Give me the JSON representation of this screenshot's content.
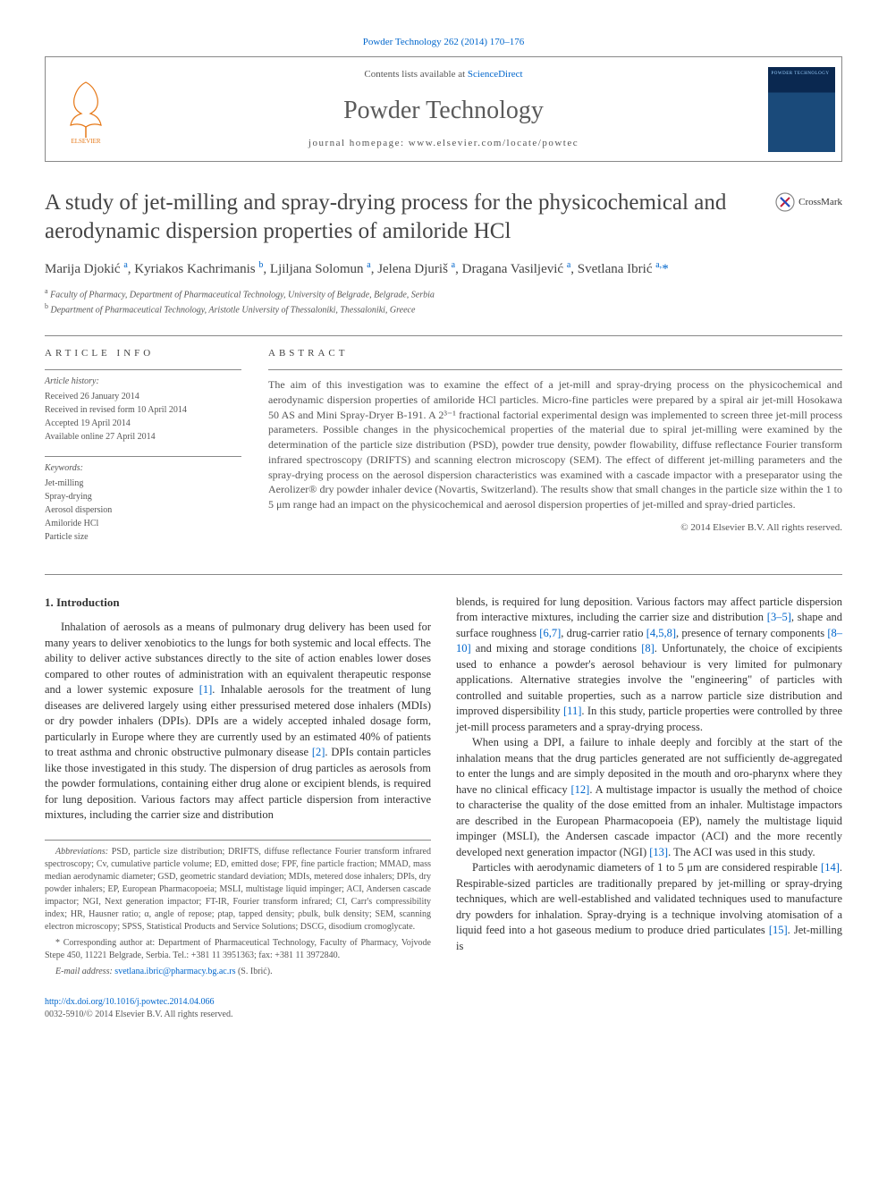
{
  "top_citation": "Powder Technology 262 (2014) 170–176",
  "masthead": {
    "contents_prefix": "Contents lists available at ",
    "contents_link": "ScienceDirect",
    "journal_name": "Powder Technology",
    "homepage_label": "journal homepage: www.elsevier.com/locate/powtec"
  },
  "crossmark_label": "CrossMark",
  "article": {
    "title": "A study of jet-milling and spray-drying process for the physicochemical and aerodynamic dispersion properties of amiloride HCl",
    "authors_html": "Marija Djokić <sup>a</sup>, Kyriakos Kachrimanis <sup>b</sup>, Ljiljana Solomun <sup>a</sup>, Jelena Djuriš <sup>a</sup>, Dragana Vasiljević <sup>a</sup>, Svetlana Ibrić <sup>a,</sup><span class=\"corr-star\">*</span>",
    "affiliations": [
      {
        "sup": "a",
        "text": "Faculty of Pharmacy, Department of Pharmaceutical Technology, University of Belgrade, Belgrade, Serbia"
      },
      {
        "sup": "b",
        "text": "Department of Pharmaceutical Technology, Aristotle University of Thessaloniki, Thessaloniki, Greece"
      }
    ]
  },
  "info": {
    "heading": "article info",
    "history_label": "Article history:",
    "history": [
      "Received 26 January 2014",
      "Received in revised form 10 April 2014",
      "Accepted 19 April 2014",
      "Available online 27 April 2014"
    ],
    "keywords_label": "Keywords:",
    "keywords": [
      "Jet-milling",
      "Spray-drying",
      "Aerosol dispersion",
      "Amiloride HCl",
      "Particle size"
    ]
  },
  "abstract": {
    "heading": "abstract",
    "text": "The aim of this investigation was to examine the effect of a jet-mill and spray-drying process on the physicochemical and aerodynamic dispersion properties of amiloride HCl particles. Micro-fine particles were prepared by a spiral air jet-mill Hosokawa 50 AS and Mini Spray-Dryer B-191. A 2³⁻¹ fractional factorial experimental design was implemented to screen three jet-mill process parameters. Possible changes in the physicochemical properties of the material due to spiral jet-milling were examined by the determination of the particle size distribution (PSD), powder true density, powder flowability, diffuse reflectance Fourier transform infrared spectroscopy (DRIFTS) and scanning electron microscopy (SEM). The effect of different jet-milling parameters and the spray-drying process on the aerosol dispersion characteristics was examined with a cascade impactor with a preseparator using the Aerolizer® dry powder inhaler device (Novartis, Switzerland). The results show that small changes in the particle size within the 1 to 5 μm range had an impact on the physicochemical and aerosol dispersion properties of jet-milled and spray-dried particles.",
    "copyright": "© 2014 Elsevier B.V. All rights reserved."
  },
  "body": {
    "section_heading": "1. Introduction",
    "p1": "Inhalation of aerosols as a means of pulmonary drug delivery has been used for many years to deliver xenobiotics to the lungs for both systemic and local effects. The ability to deliver active substances directly to the site of action enables lower doses compared to other routes of administration with an equivalent therapeutic response and a lower systemic exposure ",
    "r1": "[1]",
    "p1b": ". Inhalable aerosols for the treatment of lung diseases are delivered largely using either pressurised metered dose inhalers (MDIs) or dry powder inhalers (DPIs). DPIs are a widely accepted inhaled dosage form, particularly in Europe where they are currently used by an estimated 40% of patients to treat asthma and chronic obstructive pulmonary disease ",
    "r2": "[2]",
    "p1c": ". DPIs contain particles like those investigated in this study. The dispersion of drug particles as aerosols from the powder formulations, containing either drug alone or excipient blends, is required for lung deposition. Various factors may affect particle dispersion from interactive mixtures, including the carrier size and distribution ",
    "r3": "[3–5]",
    "p1d": ", shape and surface roughness ",
    "r4": "[6,7]",
    "p1e": ", drug-carrier ratio ",
    "r5": "[4,5,8]",
    "p1f": ", presence of ternary components ",
    "r6": "[8–10]",
    "p1g": " and mixing and storage conditions ",
    "r7": "[8]",
    "p1h": ". Unfortunately, the choice of excipients used to enhance a powder's aerosol behaviour is very limited for pulmonary applications. Alternative strategies involve the \"engineering\" of particles with controlled and suitable properties, such as a narrow particle size distribution and improved dispersibility ",
    "r8": "[11]",
    "p1i": ". In this study, particle properties were controlled by three jet-mill process parameters and a spray-drying process.",
    "p2": "When using a DPI, a failure to inhale deeply and forcibly at the start of the inhalation means that the drug particles generated are not sufficiently de-aggregated to enter the lungs and are simply deposited in the mouth and oro-pharynx where they have no clinical efficacy ",
    "r9": "[12]",
    "p2b": ". A multistage impactor is usually the method of choice to characterise the quality of the dose emitted from an inhaler. Multistage impactors are described in the European Pharmacopoeia (EP), namely the multistage liquid impinger (MSLI), the Andersen cascade impactor (ACI) and the more recently developed next generation impactor (NGI) ",
    "r10": "[13]",
    "p2c": ". The ACI was used in this study.",
    "p3": "Particles with aerodynamic diameters of 1 to 5 μm are considered respirable ",
    "r11": "[14]",
    "p3b": ". Respirable-sized particles are traditionally prepared by jet-milling or spray-drying techniques, which are well-established and validated techniques used to manufacture dry powders for inhalation. Spray-drying is a technique involving atomisation of a liquid feed into a hot gaseous medium to produce dried particulates ",
    "r12": "[15]",
    "p3c": ". Jet-milling is"
  },
  "footnotes": {
    "abbrev_label": "Abbreviations:",
    "abbrev_text": " PSD, particle size distribution; DRIFTS, diffuse reflectance Fourier transform infrared spectroscopy; Cv, cumulative particle volume; ED, emitted dose; FPF, fine particle fraction; MMAD, mass median aerodynamic diameter; GSD, geometric standard deviation; MDIs, metered dose inhalers; DPIs, dry powder inhalers; EP, European Pharmacopoeia; MSLI, multistage liquid impinger; ACI, Andersen cascade impactor; NGI, Next generation impactor; FT-IR, Fourier transform infrared; CI, Carr's compressibility index; HR, Hausner ratio; α, angle of repose; ρtap, tapped density; ρbulk, bulk density; SEM, scanning electron microscopy; SPSS, Statistical Products and Service Solutions; DSCG, disodium cromoglycate.",
    "corr_label": "* Corresponding author at:",
    "corr_text": " Department of Pharmaceutical Technology, Faculty of Pharmacy, Vojvode Stepe 450, 11221 Belgrade, Serbia. Tel.: +381 11 3951363; fax: +381 11 3972840.",
    "email_label": "E-mail address:",
    "email": "svetlana.ibric@pharmacy.bg.ac.rs",
    "email_suffix": " (S. Ibrić)."
  },
  "footer": {
    "doi": "http://dx.doi.org/10.1016/j.powtec.2014.04.066",
    "issn_line": "0032-5910/© 2014 Elsevier B.V. All rights reserved."
  },
  "colors": {
    "link": "#0066cc",
    "text": "#333333",
    "muted": "#555555",
    "border": "#888888"
  }
}
